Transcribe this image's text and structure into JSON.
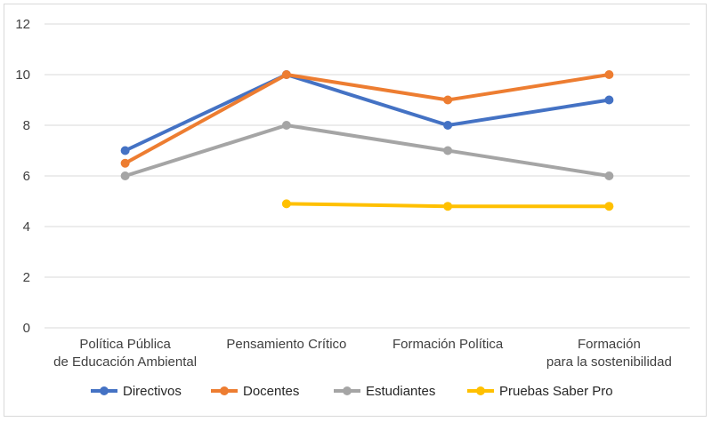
{
  "chart_data": {
    "type": "line",
    "title": "",
    "xlabel": "",
    "ylabel": "",
    "categories": [
      [
        "Política Pública",
        "de Educación Ambiental"
      ],
      [
        "Pensamiento Crítico"
      ],
      [
        "Formación Política"
      ],
      [
        "Formación",
        "para la sostenibilidad"
      ]
    ],
    "ylim": [
      0,
      12
    ],
    "yticks": [
      0,
      2,
      4,
      6,
      8,
      10,
      12
    ],
    "grid": true,
    "legend_position": "bottom",
    "series": [
      {
        "name": "Directivos",
        "color": "#4472c4",
        "values": [
          7,
          10,
          8,
          9
        ]
      },
      {
        "name": "Docentes",
        "color": "#ed7d31",
        "values": [
          6.5,
          10,
          9,
          10
        ]
      },
      {
        "name": "Estudiantes",
        "color": "#a5a5a5",
        "values": [
          6,
          8,
          7,
          6
        ]
      },
      {
        "name": "Pruebas Saber Pro",
        "color": "#ffc000",
        "values": [
          null,
          4.9,
          4.8,
          4.8
        ]
      }
    ]
  }
}
